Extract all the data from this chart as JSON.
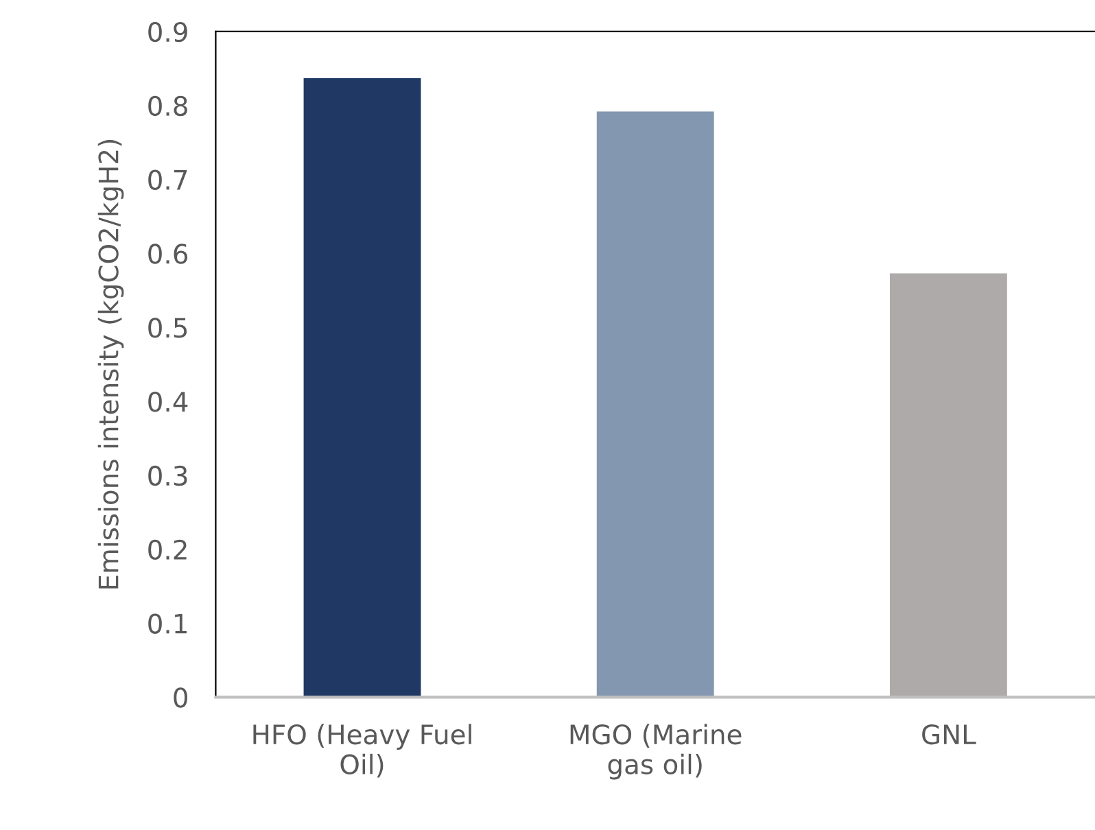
{
  "chart_data": {
    "type": "bar",
    "ylabel": "Emissions intensity (kgCO2/kgH2)",
    "categories": [
      "HFO (Heavy Fuel\nOil)",
      "MGO (Marine\ngas oil)",
      "GNL"
    ],
    "values": [
      0.837,
      0.792,
      0.573
    ],
    "colors": [
      "#203864",
      "#8497b0",
      "#aeaaaa"
    ],
    "ylim": [
      0,
      0.9
    ],
    "yticks": [
      0,
      0.1,
      0.2,
      0.3,
      0.4,
      0.5,
      0.6,
      0.7,
      0.8,
      0.9
    ],
    "grid": false,
    "legend": false
  }
}
